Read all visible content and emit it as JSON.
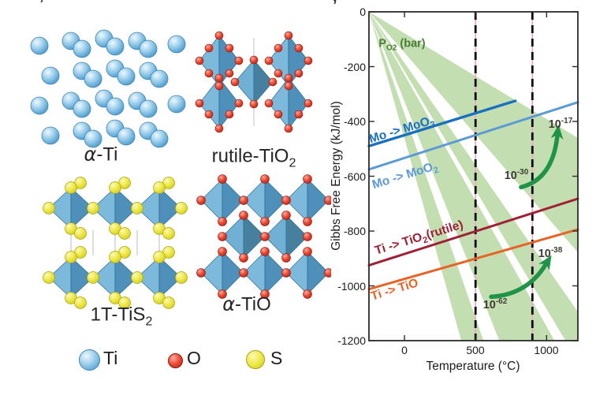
{
  "figure": {
    "crop_mark_left": "’",
    "crop_mark_right": "’"
  },
  "panel_left": {
    "structures": [
      {
        "id": "alpha-ti",
        "label": {
          "italic": "α",
          "rest": "-Ti",
          "sub": "",
          "post": ""
        }
      },
      {
        "id": "rutile-tio2",
        "label": {
          "italic": "",
          "rest": "rutile-TiO",
          "sub": "2",
          "post": ""
        }
      },
      {
        "id": "1t-tis2",
        "label": {
          "italic": "",
          "rest": "1T-TiS",
          "sub": "2",
          "post": ""
        }
      },
      {
        "id": "alpha-tio",
        "label": {
          "italic": "α",
          "rest": "-TiO",
          "sub": "",
          "post": ""
        }
      }
    ],
    "legend": {
      "items": [
        {
          "label": "Ti",
          "sphere_color": "#5aa7d6"
        },
        {
          "label": "O",
          "sphere_color": "#d93425"
        },
        {
          "label": "S",
          "sphere_color": "#e3dd2e"
        }
      ]
    }
  },
  "chart_data": {
    "type": "line",
    "title": "",
    "xlabel": "Temperature (°C)",
    "ylabel": "Gibbs Free Energy (kJ/mol)",
    "xlim": [
      -250,
      1220
    ],
    "ylim": [
      -1200,
      0
    ],
    "grid": false,
    "axis_color": "#2b2b2b",
    "xticks": [
      0,
      500,
      1000
    ],
    "xtick_labels": [
      "0",
      "500",
      "1000"
    ],
    "yticks": [
      0,
      -200,
      -400,
      -600,
      -800,
      -1000,
      -1200
    ],
    "ytick_labels": [
      "0",
      "-200",
      "-400",
      "-600",
      "-800",
      "-1000",
      "-1200"
    ],
    "series": [
      {
        "name": "Mo -> MoO3",
        "label": {
          "pre": "Mo -> MoO",
          "sub": "3",
          "post": ""
        },
        "color": "#1a6fc0",
        "width": 3.4,
        "points": [
          [
            -250,
            -490
          ],
          [
            780,
            -325
          ]
        ]
      },
      {
        "name": "Mo -> MoO2",
        "label": {
          "pre": "Mo -> MoO",
          "sub": "2",
          "post": ""
        },
        "color": "#5b9bd5",
        "width": 3.0,
        "points": [
          [
            -250,
            -575
          ],
          [
            1220,
            -330
          ]
        ]
      },
      {
        "name": "Ti -> TiO2(rutile)",
        "label": {
          "pre": "Ti -> TiO",
          "sub": "2",
          "post": "(rutile)"
        },
        "color": "#a02036",
        "width": 3.0,
        "points": [
          [
            -250,
            -925
          ],
          [
            1220,
            -682
          ]
        ]
      },
      {
        "name": "Ti -> TiO",
        "label": {
          "pre": "Ti -> TiO",
          "sub": "",
          "post": ""
        },
        "color": "#e96327",
        "width": 3.0,
        "points": [
          [
            -250,
            -1012
          ],
          [
            1220,
            -794
          ]
        ]
      }
    ],
    "po2_fan": {
      "label": {
        "pre": "P",
        "sub": "O2",
        "post": " (bar)"
      },
      "fill": "#b9d8a2",
      "opacity": 0.85,
      "origin": [
        -250,
        0
      ],
      "wedges": [
        {
          "points": [
            [
              400,
              -1200
            ],
            [
              556,
              -1200
            ]
          ]
        },
        {
          "points": [
            [
              667,
              -1200
            ],
            [
              1056,
              -1200
            ]
          ]
        },
        {
          "points": [
            [
              1133,
              -1200
            ],
            [
              1220,
              -1200
            ],
            [
              1220,
              -1095
            ]
          ]
        },
        {
          "points": [
            [
              1220,
              -878
            ],
            [
              1220,
              -460
            ]
          ]
        }
      ]
    },
    "dashed_vlines": {
      "temps": [
        500,
        900
      ],
      "dash_color": "#0c0c0c",
      "underlay_color": "#f0a3bd"
    },
    "annotations": [
      {
        "base": "10",
        "exp": "-17",
        "t": 1095,
        "g": -410
      },
      {
        "base": "10",
        "exp": "-30",
        "t": 790,
        "g": -597
      },
      {
        "base": "10",
        "exp": "-38",
        "t": 1025,
        "g": -882
      },
      {
        "base": "10",
        "exp": "-62",
        "t": 640,
        "g": -1070
      }
    ],
    "arrows": [
      {
        "from": [
          820,
          -640
        ],
        "via": [
          1040,
          -612
        ],
        "to": [
          1075,
          -455
        ]
      },
      {
        "from": [
          610,
          -1040
        ],
        "via": [
          860,
          -1032
        ],
        "to": [
          990,
          -925
        ]
      }
    ],
    "arrow_color": "#1f9347"
  }
}
